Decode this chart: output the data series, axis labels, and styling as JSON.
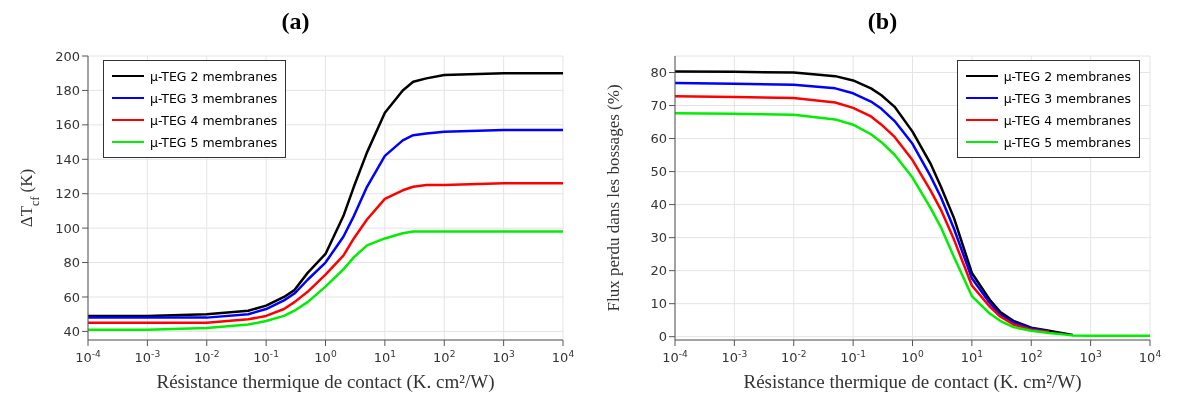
{
  "chart_data": [
    {
      "type": "line",
      "title": "(a)",
      "xlabel": "Résistance thermique de contact (K. cm²/W)",
      "ylabel": "ΔT$_{cf}$ (K)",
      "log": "x",
      "grid": true,
      "legend": "top left",
      "marker": "none",
      "line_style": "solid",
      "x": [
        0.0001,
        0.001,
        0.01,
        0.05,
        0.1,
        0.2,
        0.3,
        0.5,
        1,
        2,
        3,
        5,
        10,
        20,
        30,
        50,
        100,
        1000,
        10000
      ],
      "xlim": [
        0.0001,
        10000
      ],
      "xticks": [
        {
          "value": 0.0001,
          "label": "10$^{-4}$"
        },
        {
          "value": 0.001,
          "label": "10$^{-3}$"
        },
        {
          "value": 0.01,
          "label": "10$^{-2}$"
        },
        {
          "value": 0.1,
          "label": "10$^{-1}$"
        },
        {
          "value": 1,
          "label": "10$^{0}$"
        },
        {
          "value": 10,
          "label": "10$^{1}$"
        },
        {
          "value": 100,
          "label": "10$^{2}$"
        },
        {
          "value": 1000,
          "label": "10$^{3}$"
        },
        {
          "value": 10000,
          "label": "10$^{4}$"
        }
      ],
      "ylim": [
        35,
        200
      ],
      "yticks": [
        40,
        60,
        80,
        100,
        120,
        140,
        160,
        180,
        200
      ],
      "series": [
        {
          "name": "µ-TEG 2 membranes",
          "color": "#000000",
          "values": [
            49,
            49,
            50,
            52,
            55,
            60,
            64,
            74,
            85,
            107,
            124,
            144,
            167,
            180,
            185,
            187,
            189,
            190,
            190
          ]
        },
        {
          "name": "µ-TEG 3 membranes",
          "color": "#0000ff",
          "values": [
            48,
            48,
            48,
            50,
            53,
            58,
            62,
            70,
            80,
            95,
            107,
            124,
            142,
            151,
            154,
            155,
            156,
            157,
            157
          ]
        },
        {
          "name": "µ-TEG 4 membranes",
          "color": "#ff0000",
          "values": [
            45,
            45,
            45,
            47,
            49,
            53,
            57,
            63,
            73,
            84,
            94,
            105,
            117,
            122,
            124,
            125,
            125,
            126,
            126
          ]
        },
        {
          "name": "µ-TEG 5 membranes",
          "color": "#00ee00",
          "values": [
            41,
            41,
            42,
            44,
            46,
            49,
            52,
            57,
            66,
            76,
            83,
            90,
            94,
            97,
            98,
            98,
            98,
            98,
            98
          ]
        }
      ]
    },
    {
      "type": "line",
      "title": "(b)",
      "xlabel": "Résistance thermique de contact (K. cm²/W)",
      "ylabel": "Flux perdu dans les bossages (%)",
      "log": "x",
      "grid": true,
      "legend": "top right",
      "marker": "none",
      "line_style": "solid",
      "x": [
        0.0001,
        0.001,
        0.01,
        0.05,
        0.1,
        0.2,
        0.3,
        0.5,
        1,
        2,
        3,
        5,
        10,
        20,
        30,
        50,
        100,
        200,
        500,
        1000,
        10000
      ],
      "xlim": [
        0.0001,
        10000
      ],
      "xticks": [
        {
          "value": 0.0001,
          "label": "10$^{-4}$"
        },
        {
          "value": 0.001,
          "label": "10$^{-3}$"
        },
        {
          "value": 0.01,
          "label": "10$^{-2}$"
        },
        {
          "value": 0.1,
          "label": "10$^{-1}$"
        },
        {
          "value": 1,
          "label": "10$^{0}$"
        },
        {
          "value": 10,
          "label": "10$^{1}$"
        },
        {
          "value": 100,
          "label": "10$^{2}$"
        },
        {
          "value": 1000,
          "label": "10$^{3}$"
        },
        {
          "value": 10000,
          "label": "10$^{4}$"
        }
      ],
      "ylim": [
        -1,
        85
      ],
      "yticks": [
        0,
        10,
        20,
        30,
        40,
        50,
        60,
        70,
        80
      ],
      "series": [
        {
          "name": "µ-TEG 2 membranes",
          "color": "#000000",
          "values": [
            80.3,
            80.2,
            80,
            78.9,
            77.6,
            75.2,
            73.1,
            69.6,
            62.1,
            52.5,
            45.5,
            35.9,
            19.3,
            11.2,
            7.5,
            4.8,
            2.7,
            1.8,
            0.5,
            null,
            null
          ]
        },
        {
          "name": "µ-TEG 3 membranes",
          "color": "#0000ff",
          "values": [
            76.8,
            76.6,
            76.3,
            75.2,
            73.7,
            71.2,
            69,
            65.3,
            58.4,
            48.7,
            42.3,
            32.7,
            17.7,
            10.2,
            6.7,
            4.3,
            2.5,
            1.6,
            null,
            null,
            null
          ]
        },
        {
          "name": "µ-TEG 4 membranes",
          "color": "#ff0000",
          "values": [
            72.8,
            72.6,
            72.3,
            70.9,
            69.3,
            66.7,
            64.2,
            60.5,
            53.5,
            44.4,
            38.5,
            29.4,
            15.5,
            9.1,
            6.1,
            3.7,
            2.1,
            1.4,
            null,
            null,
            null
          ]
        },
        {
          "name": "µ-TEG 5 membranes",
          "color": "#00ee00",
          "values": [
            67.7,
            67.5,
            67.2,
            65.8,
            64.2,
            61.3,
            58.9,
            55.1,
            48.2,
            39.1,
            33.2,
            24.1,
            12.3,
            7,
            4.8,
            2.9,
            1.8,
            1.1,
            0.4,
            0.3,
            0.3
          ]
        }
      ]
    }
  ]
}
